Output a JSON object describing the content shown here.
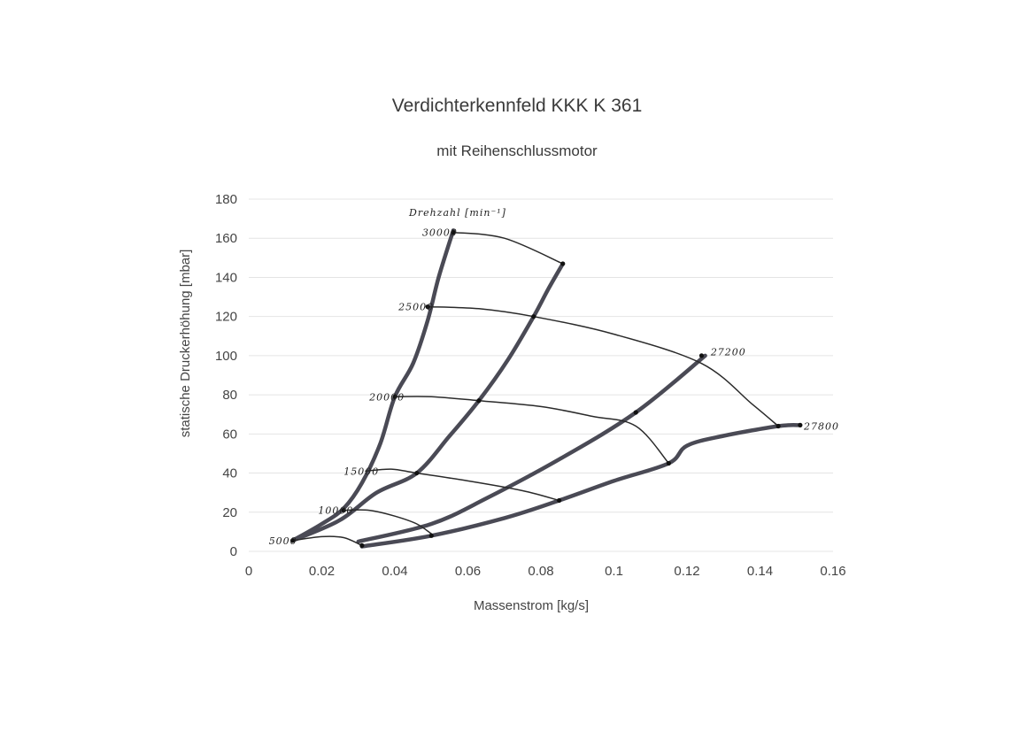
{
  "chart_data": {
    "type": "line",
    "title": "Verdichterkennfeld KKK K 361",
    "subtitle": "mit Reihenschlussmotor",
    "xlabel": "Massenstrom [kg/s]",
    "ylabel": "statische Druckerhöhung [mbar]",
    "xlim": [
      0,
      0.16
    ],
    "ylim": [
      0,
      180
    ],
    "xticks": [
      0,
      0.02,
      0.04,
      0.06,
      0.08,
      0.1,
      0.12,
      0.14,
      0.16
    ],
    "xtick_labels": [
      "0",
      "0.02",
      "0.04",
      "0.06",
      "0.08",
      "0.1",
      "0.12",
      "0.14",
      "0.16"
    ],
    "yticks": [
      0,
      20,
      40,
      60,
      80,
      100,
      120,
      140,
      160,
      180
    ],
    "ytick_labels": [
      "0",
      "20",
      "40",
      "60",
      "80",
      "100",
      "120",
      "140",
      "160",
      "180"
    ],
    "grid": "horizontal",
    "throttle_curves": [
      {
        "points": [
          [
            0.012,
            5.5
          ],
          [
            0.02,
            14
          ],
          [
            0.026,
            22
          ],
          [
            0.031,
            35
          ],
          [
            0.036,
            55
          ],
          [
            0.04,
            79
          ],
          [
            0.045,
            96
          ],
          [
            0.049,
            118
          ],
          [
            0.052,
            140
          ],
          [
            0.056,
            164
          ]
        ]
      },
      {
        "points": [
          [
            0.012,
            5.5
          ],
          [
            0.025,
            16
          ],
          [
            0.035,
            30
          ],
          [
            0.046,
            40
          ],
          [
            0.055,
            59
          ],
          [
            0.063,
            77
          ],
          [
            0.071,
            98
          ],
          [
            0.078,
            120
          ],
          [
            0.082,
            134
          ],
          [
            0.086,
            147
          ]
        ]
      },
      {
        "points": [
          [
            0.03,
            5
          ],
          [
            0.05,
            14
          ],
          [
            0.065,
            27
          ],
          [
            0.085,
            47
          ],
          [
            0.106,
            71
          ],
          [
            0.125,
            100
          ]
        ]
      },
      {
        "points": [
          [
            0.031,
            2.5
          ],
          [
            0.05,
            8
          ],
          [
            0.07,
            17
          ],
          [
            0.085,
            26
          ],
          [
            0.1,
            36
          ],
          [
            0.115,
            45
          ],
          [
            0.12,
            54
          ],
          [
            0.13,
            59
          ],
          [
            0.145,
            64
          ],
          [
            0.151,
            64.5
          ]
        ]
      }
    ],
    "speed_lines": [
      {
        "name": "5000",
        "points": [
          [
            0.012,
            5.5
          ],
          [
            0.02,
            7.5
          ],
          [
            0.026,
            7
          ],
          [
            0.031,
            3
          ]
        ]
      },
      {
        "name": "10000",
        "points": [
          [
            0.026,
            21
          ],
          [
            0.033,
            21
          ],
          [
            0.04,
            18
          ],
          [
            0.046,
            14
          ],
          [
            0.05,
            9
          ]
        ]
      },
      {
        "name": "15000",
        "points": [
          [
            0.032,
            41
          ],
          [
            0.039,
            42
          ],
          [
            0.046,
            40
          ],
          [
            0.06,
            36
          ],
          [
            0.075,
            31
          ],
          [
            0.085,
            26
          ]
        ]
      },
      {
        "name": "20000",
        "points": [
          [
            0.04,
            79
          ],
          [
            0.05,
            79
          ],
          [
            0.063,
            77
          ],
          [
            0.08,
            74
          ],
          [
            0.094,
            69
          ],
          [
            0.106,
            64
          ],
          [
            0.115,
            45
          ]
        ]
      },
      {
        "name": "25000",
        "points": [
          [
            0.049,
            125
          ],
          [
            0.063,
            124
          ],
          [
            0.078,
            120
          ],
          [
            0.1,
            111
          ],
          [
            0.124,
            96
          ],
          [
            0.138,
            75
          ],
          [
            0.145,
            64
          ]
        ]
      },
      {
        "name": "30000",
        "points": [
          [
            0.056,
            163
          ],
          [
            0.07,
            160
          ],
          [
            0.086,
            147
          ]
        ]
      }
    ],
    "speed_label_header": "Drehzahl [min⁻¹]",
    "annotations": [
      {
        "text": "5000",
        "x": 0.0055,
        "y": 5.5
      },
      {
        "text": "10000",
        "x": 0.019,
        "y": 21
      },
      {
        "text": "15000",
        "x": 0.026,
        "y": 41
      },
      {
        "text": "20000",
        "x": 0.033,
        "y": 79
      },
      {
        "text": "25000",
        "x": 0.041,
        "y": 125
      },
      {
        "text": "30000",
        "x": 0.0475,
        "y": 163
      },
      {
        "text": "27200",
        "x": 0.1265,
        "y": 102
      },
      {
        "text": "27800",
        "x": 0.152,
        "y": 64
      }
    ],
    "markers": [
      [
        0.012,
        5.5
      ],
      [
        0.026,
        21
      ],
      [
        0.04,
        79
      ],
      [
        0.049,
        125
      ],
      [
        0.056,
        163
      ],
      [
        0.086,
        147
      ],
      [
        0.078,
        120
      ],
      [
        0.063,
        77
      ],
      [
        0.046,
        40
      ],
      [
        0.05,
        8
      ],
      [
        0.085,
        26
      ],
      [
        0.106,
        71
      ],
      [
        0.115,
        45
      ],
      [
        0.124,
        100
      ],
      [
        0.145,
        64
      ],
      [
        0.151,
        64.5
      ],
      [
        0.031,
        3
      ]
    ]
  }
}
